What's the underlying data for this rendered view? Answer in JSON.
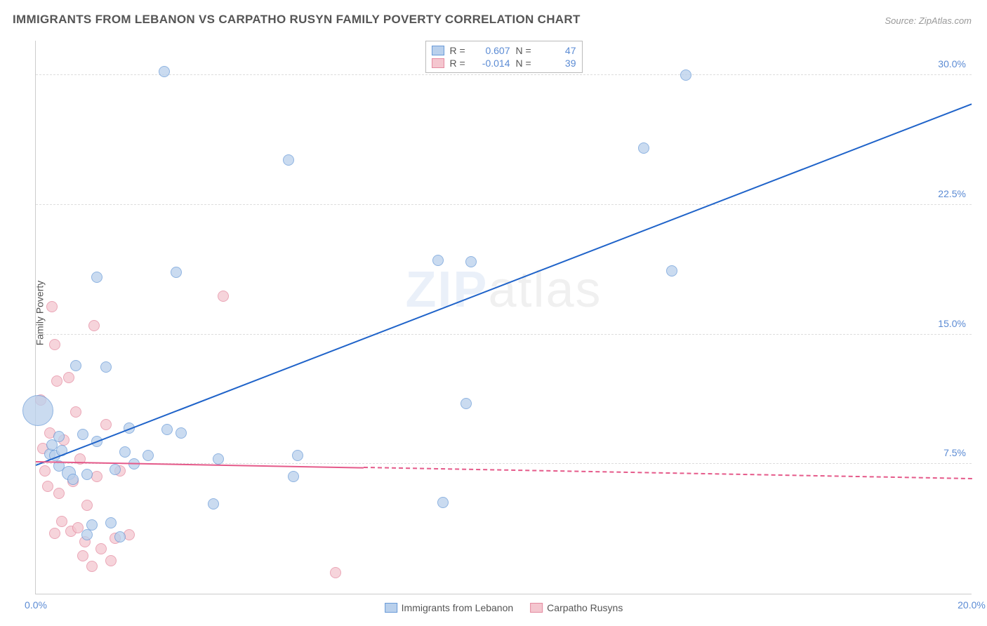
{
  "title": "IMMIGRANTS FROM LEBANON VS CARPATHO RUSYN FAMILY POVERTY CORRELATION CHART",
  "source": "Source: ZipAtlas.com",
  "ylabel": "Family Poverty",
  "watermark_a": "ZIP",
  "watermark_b": "atlas",
  "xlim": [
    0,
    20
  ],
  "ylim": [
    0,
    32
  ],
  "yticks": [
    {
      "v": 7.5,
      "label": "7.5%"
    },
    {
      "v": 15.0,
      "label": "15.0%"
    },
    {
      "v": 22.5,
      "label": "22.5%"
    },
    {
      "v": 30.0,
      "label": "30.0%"
    }
  ],
  "xticks": [
    {
      "v": 0,
      "label": "0.0%"
    },
    {
      "v": 20,
      "label": "20.0%"
    }
  ],
  "series": {
    "a": {
      "name": "Immigrants from Lebanon",
      "fill": "#b9d0ec",
      "stroke": "#6a9bd8",
      "line_color": "#1f63c9",
      "r_label": "R =",
      "r_value": "0.607",
      "n_label": "N =",
      "n_value": "47",
      "trend": {
        "x0": 0,
        "y0": 7.4,
        "x1": 20,
        "y1": 28.3,
        "dash_after_x": null
      },
      "points": [
        {
          "x": 0.05,
          "y": 10.6,
          "r": 22
        },
        {
          "x": 0.3,
          "y": 8.1,
          "r": 8
        },
        {
          "x": 0.35,
          "y": 8.6,
          "r": 8
        },
        {
          "x": 0.4,
          "y": 8.0,
          "r": 8
        },
        {
          "x": 0.5,
          "y": 7.4,
          "r": 8
        },
        {
          "x": 0.5,
          "y": 9.1,
          "r": 8
        },
        {
          "x": 0.55,
          "y": 8.3,
          "r": 8
        },
        {
          "x": 0.7,
          "y": 7.0,
          "r": 10
        },
        {
          "x": 0.8,
          "y": 6.6,
          "r": 8
        },
        {
          "x": 0.85,
          "y": 13.2,
          "r": 8
        },
        {
          "x": 1.0,
          "y": 9.2,
          "r": 8
        },
        {
          "x": 1.1,
          "y": 6.9,
          "r": 8
        },
        {
          "x": 1.1,
          "y": 3.4,
          "r": 8
        },
        {
          "x": 1.2,
          "y": 4.0,
          "r": 8
        },
        {
          "x": 1.3,
          "y": 8.8,
          "r": 8
        },
        {
          "x": 1.3,
          "y": 18.3,
          "r": 8
        },
        {
          "x": 1.5,
          "y": 13.1,
          "r": 8
        },
        {
          "x": 1.6,
          "y": 4.1,
          "r": 8
        },
        {
          "x": 1.7,
          "y": 7.2,
          "r": 8
        },
        {
          "x": 1.8,
          "y": 3.3,
          "r": 8
        },
        {
          "x": 1.9,
          "y": 8.2,
          "r": 8
        },
        {
          "x": 2.0,
          "y": 9.6,
          "r": 8
        },
        {
          "x": 2.1,
          "y": 7.5,
          "r": 8
        },
        {
          "x": 2.4,
          "y": 8.0,
          "r": 8
        },
        {
          "x": 2.75,
          "y": 30.2,
          "r": 8
        },
        {
          "x": 2.8,
          "y": 9.5,
          "r": 8
        },
        {
          "x": 3.0,
          "y": 18.6,
          "r": 8
        },
        {
          "x": 3.1,
          "y": 9.3,
          "r": 8
        },
        {
          "x": 3.8,
          "y": 5.2,
          "r": 8
        },
        {
          "x": 3.9,
          "y": 7.8,
          "r": 8
        },
        {
          "x": 5.4,
          "y": 25.1,
          "r": 8
        },
        {
          "x": 5.5,
          "y": 6.8,
          "r": 8
        },
        {
          "x": 5.6,
          "y": 8.0,
          "r": 8
        },
        {
          "x": 8.6,
          "y": 19.3,
          "r": 8
        },
        {
          "x": 8.7,
          "y": 5.3,
          "r": 8
        },
        {
          "x": 9.2,
          "y": 11.0,
          "r": 8
        },
        {
          "x": 9.3,
          "y": 19.2,
          "r": 8
        },
        {
          "x": 13.0,
          "y": 25.8,
          "r": 8
        },
        {
          "x": 13.6,
          "y": 18.7,
          "r": 8
        },
        {
          "x": 13.9,
          "y": 30.0,
          "r": 8
        }
      ]
    },
    "b": {
      "name": "Carpatho Rusyns",
      "fill": "#f4c6cf",
      "stroke": "#e48aa0",
      "line_color": "#e55a8a",
      "r_label": "R =",
      "r_value": "-0.014",
      "n_label": "N =",
      "n_value": "39",
      "trend": {
        "x0": 0,
        "y0": 7.6,
        "x1": 20,
        "y1": 6.6,
        "dash_after_x": 7.0
      },
      "points": [
        {
          "x": 0.1,
          "y": 11.2,
          "r": 8
        },
        {
          "x": 0.15,
          "y": 8.4,
          "r": 8
        },
        {
          "x": 0.2,
          "y": 7.1,
          "r": 8
        },
        {
          "x": 0.25,
          "y": 6.2,
          "r": 8
        },
        {
          "x": 0.3,
          "y": 9.3,
          "r": 8
        },
        {
          "x": 0.35,
          "y": 16.6,
          "r": 8
        },
        {
          "x": 0.4,
          "y": 14.4,
          "r": 8
        },
        {
          "x": 0.4,
          "y": 3.5,
          "r": 8
        },
        {
          "x": 0.45,
          "y": 12.3,
          "r": 8
        },
        {
          "x": 0.5,
          "y": 5.8,
          "r": 8
        },
        {
          "x": 0.55,
          "y": 4.2,
          "r": 8
        },
        {
          "x": 0.6,
          "y": 8.9,
          "r": 8
        },
        {
          "x": 0.7,
          "y": 12.5,
          "r": 8
        },
        {
          "x": 0.75,
          "y": 3.6,
          "r": 8
        },
        {
          "x": 0.8,
          "y": 6.5,
          "r": 8
        },
        {
          "x": 0.85,
          "y": 10.5,
          "r": 8
        },
        {
          "x": 0.9,
          "y": 3.8,
          "r": 8
        },
        {
          "x": 0.95,
          "y": 7.8,
          "r": 8
        },
        {
          "x": 1.0,
          "y": 2.2,
          "r": 8
        },
        {
          "x": 1.05,
          "y": 3.0,
          "r": 8
        },
        {
          "x": 1.1,
          "y": 5.1,
          "r": 8
        },
        {
          "x": 1.2,
          "y": 1.6,
          "r": 8
        },
        {
          "x": 1.25,
          "y": 15.5,
          "r": 8
        },
        {
          "x": 1.3,
          "y": 6.8,
          "r": 8
        },
        {
          "x": 1.4,
          "y": 2.6,
          "r": 8
        },
        {
          "x": 1.5,
          "y": 9.8,
          "r": 8
        },
        {
          "x": 1.6,
          "y": 1.9,
          "r": 8
        },
        {
          "x": 1.7,
          "y": 3.2,
          "r": 8
        },
        {
          "x": 1.8,
          "y": 7.1,
          "r": 8
        },
        {
          "x": 2.0,
          "y": 3.4,
          "r": 8
        },
        {
          "x": 4.0,
          "y": 17.2,
          "r": 8
        },
        {
          "x": 6.4,
          "y": 1.2,
          "r": 8
        }
      ]
    }
  },
  "colors": {
    "title": "#555555",
    "source": "#999999",
    "axis": "#cccccc",
    "grid": "#dddddd",
    "ytick": "#5b8bd4",
    "xtick": "#5b8bd4",
    "stat_val": "#5b8bd4"
  }
}
